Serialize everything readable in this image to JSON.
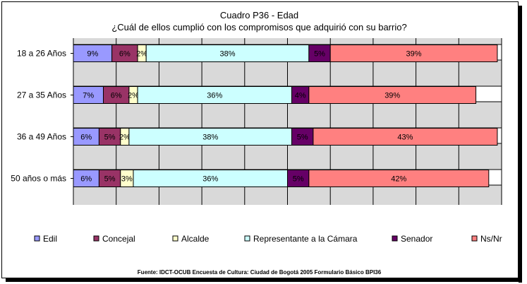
{
  "chart_data": {
    "type": "bar",
    "orientation": "horizontal",
    "stacked": "100%",
    "title": "Cuadro P36 - Edad",
    "subtitle": "¿Cuál de ellos cumplió con los compromisos que adquirió con su barrio?",
    "categories": [
      "18 a 26 Años",
      "27 a 35 Años",
      "36 a 49 Años",
      "50 años o más"
    ],
    "series": [
      {
        "name": "Edil",
        "color": "#9999ff",
        "values": [
          9,
          7,
          6,
          6
        ]
      },
      {
        "name": "Concejal",
        "color": "#993366",
        "values": [
          6,
          6,
          5,
          5
        ]
      },
      {
        "name": "Alcalde",
        "color": "#ffffcc",
        "values": [
          2,
          2,
          2,
          3
        ]
      },
      {
        "name": "Representante a la Cámara",
        "color": "#ccffff",
        "values": [
          38,
          36,
          38,
          36
        ]
      },
      {
        "name": "Senador",
        "color": "#660066",
        "values": [
          5,
          4,
          5,
          5
        ]
      },
      {
        "name": "Ns/Nr",
        "color": "#ff8080",
        "values": [
          39,
          39,
          43,
          42
        ]
      }
    ],
    "data_labels": [
      [
        "9%",
        "6%",
        "2%",
        "38%",
        "5%",
        "39%"
      ],
      [
        "7%",
        "6%",
        "2%",
        "36%",
        "4%",
        "39%"
      ],
      [
        "6%",
        "5%",
        "2%",
        "38%",
        "5%",
        "43%"
      ],
      [
        "6%",
        "5%",
        "3%",
        "36%",
        "5%",
        "42%"
      ]
    ],
    "xlim": [
      0,
      100
    ],
    "grid": true,
    "legend_position": "bottom"
  },
  "footer": {
    "source": "Fuente: IDCT-OCUB Encuesta de Cultura: Ciudad de Bogotá 2005 Formulario Básico BPI36"
  }
}
